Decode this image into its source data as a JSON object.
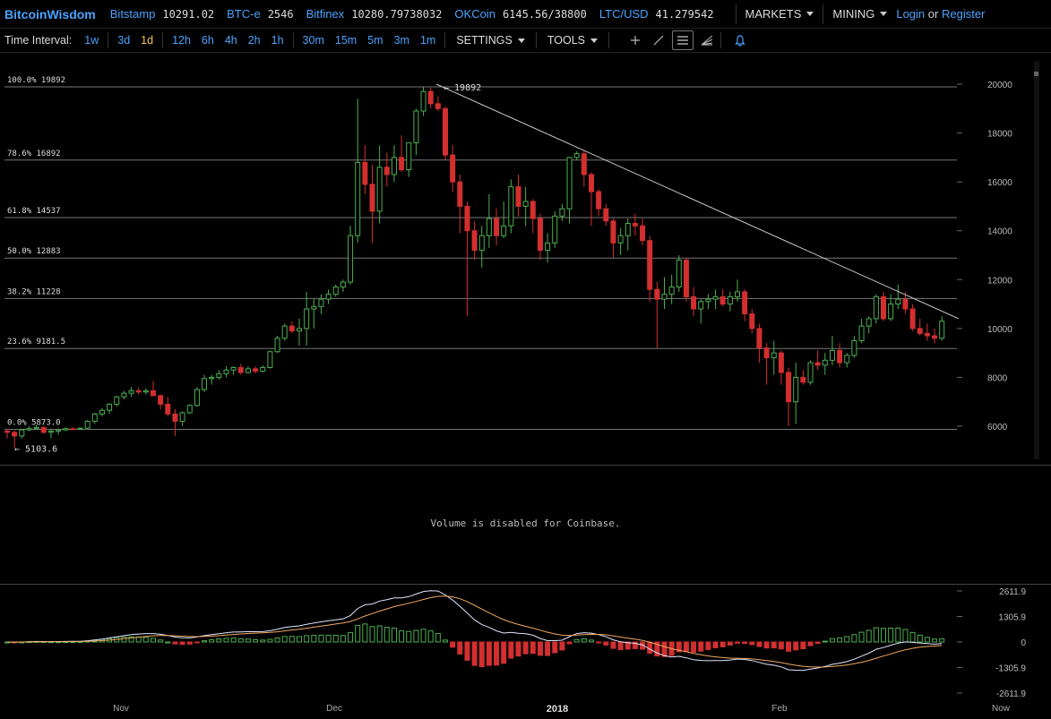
{
  "header": {
    "brand": "BitcoinWisdom",
    "tickers": [
      {
        "name": "Bitstamp",
        "value": "10291.02"
      },
      {
        "name": "BTC-e",
        "value": "2546"
      },
      {
        "name": "Bitfinex",
        "value": "10280.79738032"
      },
      {
        "name": "OKCoin",
        "value": "6145.56/38800"
      },
      {
        "name": "LTC/USD",
        "value": "41.279542"
      }
    ],
    "markets_label": "MARKETS",
    "mining_label": "MINING",
    "login_label": "Login",
    "or_label": "or",
    "register_label": "Register"
  },
  "toolbar": {
    "time_interval_label": "Time Interval:",
    "intervals": [
      "1w",
      "3d",
      "1d",
      "12h",
      "6h",
      "4h",
      "2h",
      "1h",
      "30m",
      "15m",
      "5m",
      "3m",
      "1m"
    ],
    "active_interval": "1d",
    "settings_label": "SETTINGS",
    "tools_label": "TOOLS"
  },
  "chart": {
    "y_ticks": [
      "20000",
      "18000",
      "16000",
      "14000",
      "12000",
      "10000",
      "8000",
      "6000"
    ],
    "fib_levels": [
      {
        "label": "100.0% 19892",
        "price": 19892
      },
      {
        "label": "78.6% 16892",
        "price": 16892
      },
      {
        "label": "61.8% 14537",
        "price": 14537
      },
      {
        "label": "50.0% 12883",
        "price": 12883
      },
      {
        "label": "38.2% 11228",
        "price": 11228
      },
      {
        "label": "23.6% 9181.5",
        "price": 9181.5
      },
      {
        "label": "0.0% 5873.0",
        "price": 5873.0
      }
    ],
    "high_marker": "← 19892",
    "low_marker": "← 5103.6",
    "colors": {
      "up": "#4caf50",
      "down": "#d32f2f",
      "grid": "#777",
      "trend": "#cccccc"
    }
  },
  "volume": {
    "message": "Volume is disabled for Coinbase."
  },
  "macd": {
    "ticks": [
      "2611.9",
      "1305.9",
      "0",
      "-1305.9",
      "-2611.9"
    ]
  },
  "x_axis": {
    "labels": [
      "Nov",
      "Dec",
      "2018",
      "Feb",
      "Now"
    ]
  }
}
